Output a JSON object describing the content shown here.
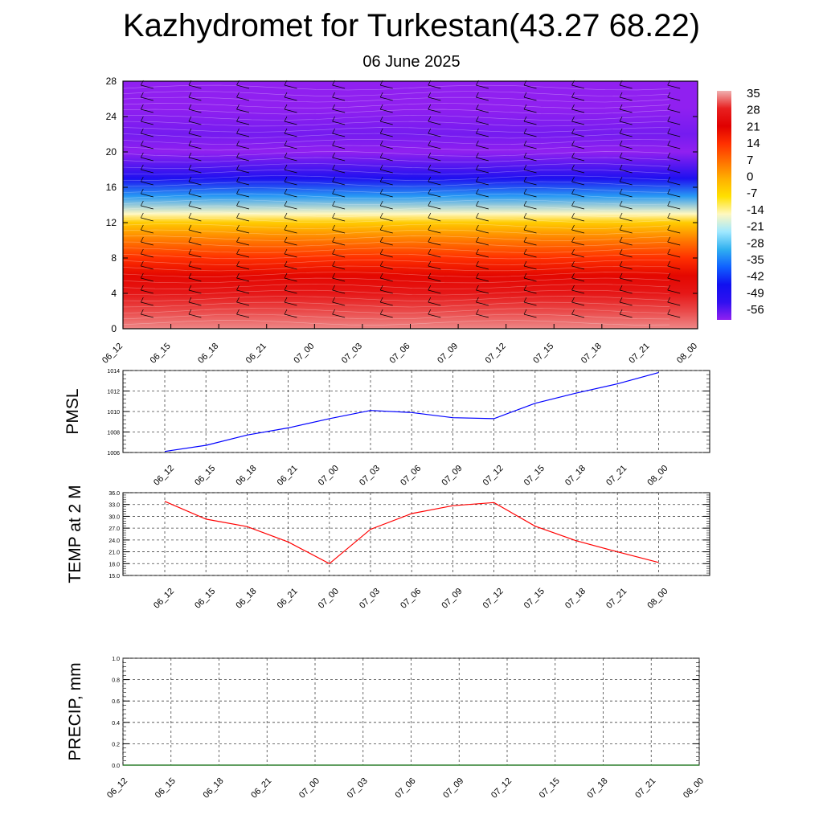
{
  "page": {
    "title": "Kazhydromet for Turkestan(43.27 68.22)",
    "subtitle": "06 June 2025"
  },
  "chart_data": [
    {
      "type": "heatmap",
      "name": "temperature-cross-section",
      "x_tick_labels": [
        "06_12",
        "06_15",
        "06_18",
        "06_21",
        "07_00",
        "07_03",
        "07_06",
        "07_09",
        "07_12",
        "07_15",
        "07_18",
        "07_21",
        "08_00"
      ],
      "y_tick_labels": [
        "0",
        "4",
        "8",
        "12",
        "16",
        "20",
        "24",
        "28"
      ],
      "ylim": [
        0,
        28
      ],
      "colorbar_labels": [
        "35",
        "28",
        "21",
        "14",
        "7",
        "0",
        "-7",
        "-14",
        "-21",
        "-28",
        "-35",
        "-42",
        "-49",
        "-56"
      ],
      "colorbar_colors": [
        "#f0b0b0",
        "#e82020",
        "#e00000",
        "#ff3000",
        "#ff7000",
        "#ffb000",
        "#ffe000",
        "#fff8c0",
        "#a0e8ff",
        "#30b0f0",
        "#1060ff",
        "#1010f0",
        "#3010f0",
        "#9020f0"
      ],
      "layers": [
        {
          "level": 0,
          "value": 33
        },
        {
          "level": 2,
          "value": 30
        },
        {
          "level": 4,
          "value": 26
        },
        {
          "level": 6,
          "value": 20
        },
        {
          "level": 8,
          "value": 14
        },
        {
          "level": 10,
          "value": 6
        },
        {
          "level": 12,
          "value": -4
        },
        {
          "level": 13,
          "value": -14
        },
        {
          "level": 15,
          "value": -30
        },
        {
          "level": 17,
          "value": -45
        },
        {
          "level": 20,
          "value": -58
        },
        {
          "level": 22,
          "value": -54
        },
        {
          "level": 25,
          "value": -58
        },
        {
          "level": 28,
          "value": -62
        }
      ],
      "wind_barbs": true,
      "grid": false
    },
    {
      "type": "line",
      "ylabel": "PMSL",
      "x_tick_labels": [
        "06_12",
        "06_15",
        "06_18",
        "06_21",
        "07_00",
        "07_03",
        "07_06",
        "07_09",
        "07_12",
        "07_15",
        "07_18",
        "07_21",
        "08_00"
      ],
      "y_tick_labels": [
        "1006",
        "1008",
        "1010",
        "1012",
        "1014"
      ],
      "ylim": [
        1006,
        1014
      ],
      "series": [
        {
          "values": [
            1006.1,
            1006.7,
            1007.7,
            1008.4,
            1009.3,
            1010.1,
            1009.9,
            1009.4,
            1009.3,
            1010.8,
            1011.8,
            1012.7,
            1013.8
          ],
          "color": "#0000ff"
        }
      ],
      "grid": true
    },
    {
      "type": "line",
      "ylabel": "TEMP at 2 M",
      "x_tick_labels": [
        "06_12",
        "06_15",
        "06_18",
        "06_21",
        "07_00",
        "07_03",
        "07_06",
        "07_09",
        "07_12",
        "07_15",
        "07_18",
        "07_21",
        "08_00"
      ],
      "y_tick_labels": [
        "15.0",
        "18.0",
        "21.0",
        "24.0",
        "27.0",
        "30.0",
        "33.0",
        "36.0"
      ],
      "ylim": [
        15,
        36
      ],
      "series": [
        {
          "values": [
            33.8,
            29.3,
            27.4,
            23.5,
            18.0,
            26.7,
            30.7,
            32.7,
            33.5,
            27.5,
            23.8,
            21.0,
            18.3
          ],
          "color": "#ff0000"
        }
      ],
      "grid": true
    },
    {
      "type": "line",
      "ylabel": "PRECIP, mm",
      "x_tick_labels": [
        "06_12",
        "06_15",
        "06_18",
        "06_21",
        "07_00",
        "07_03",
        "07_06",
        "07_09",
        "07_12",
        "07_15",
        "07_18",
        "07_21",
        "08_00"
      ],
      "y_tick_labels": [
        "0.0",
        "0.2",
        "0.4",
        "0.6",
        "0.8",
        "1.0"
      ],
      "ylim": [
        0,
        1
      ],
      "series": [
        {
          "values": [
            0,
            0,
            0,
            0,
            0,
            0,
            0,
            0,
            0,
            0,
            0,
            0,
            0
          ],
          "color": "#006400"
        }
      ],
      "grid": true
    }
  ]
}
